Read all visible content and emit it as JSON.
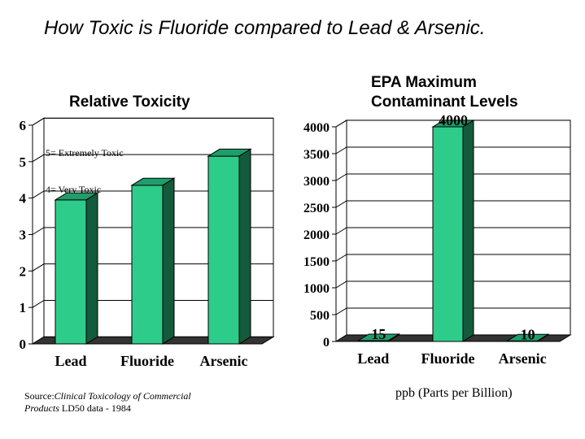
{
  "slide": {
    "title": "How Toxic is Fluoride compared to Lead & Arsenic.",
    "source_prefix": "Source:",
    "source_italic": "Clinical Toxicology of Commercial Products",
    "source_suffix": " LD50 data - 1984",
    "units_note": "ppb (Parts per Billion)"
  },
  "chart_data": [
    {
      "type": "bar",
      "title": "Relative Toxicity",
      "categories": [
        "Lead",
        "Fluoride",
        "Arsenic"
      ],
      "values": [
        3.95,
        4.35,
        5.15
      ],
      "ylim": [
        0,
        6
      ],
      "yticks": [
        "0",
        "1",
        "2",
        "3",
        "4",
        "5",
        "6"
      ],
      "annotations": [
        "5= Extremely Toxic",
        "4= Very Toxic"
      ],
      "annotation_values": [
        5,
        4
      ],
      "grid": true,
      "bar_color": "#2ecc8a"
    },
    {
      "type": "bar",
      "title": "EPA Maximum Contaminant Levels",
      "categories": [
        "Lead",
        "Fluoride",
        "Arsenic"
      ],
      "values": [
        15,
        4000,
        10
      ],
      "data_labels": [
        "15",
        "4000",
        "10"
      ],
      "ylim": [
        0,
        4000
      ],
      "yticks": [
        "0",
        "500",
        "1000",
        "1500",
        "2000",
        "2500",
        "3000",
        "3500",
        "4000"
      ],
      "grid": true,
      "bar_color": "#2ecc8a"
    }
  ]
}
